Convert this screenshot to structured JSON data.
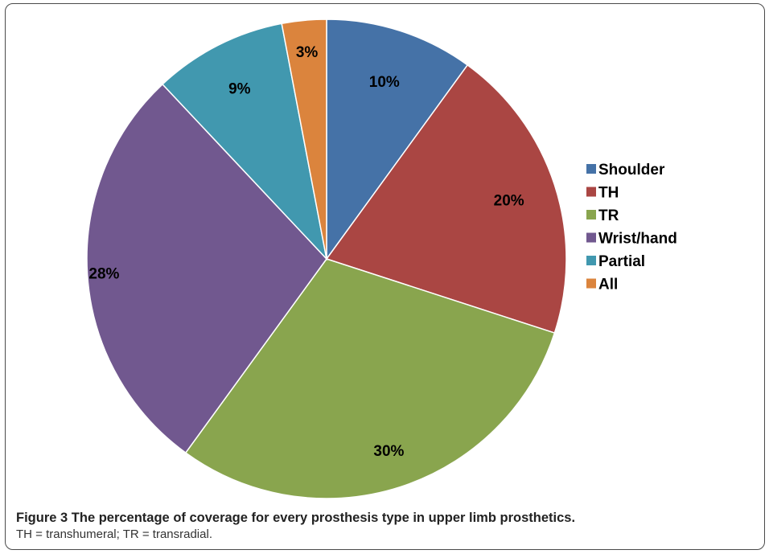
{
  "chart_data": {
    "type": "pie",
    "title": "",
    "categories": [
      "Shoulder",
      "TH",
      "TR",
      "Wrist/hand",
      "Partial",
      "All"
    ],
    "values": [
      10,
      20,
      30,
      28,
      9,
      3
    ],
    "labels": [
      "10%",
      "20%",
      "30%",
      "28%",
      "9%",
      "3%"
    ],
    "colors": [
      "#4572A7",
      "#AA4643",
      "#89A54E",
      "#71588F",
      "#4198AF",
      "#DB843D"
    ],
    "start_angle_deg": 0,
    "direction": "clockwise",
    "legend_position": "right"
  },
  "caption": {
    "label": "Figure 3",
    "title": "The percentage of coverage for every prosthesis type in upper limb prosthetics.",
    "note": "TH = transhumeral; TR = transradial."
  }
}
